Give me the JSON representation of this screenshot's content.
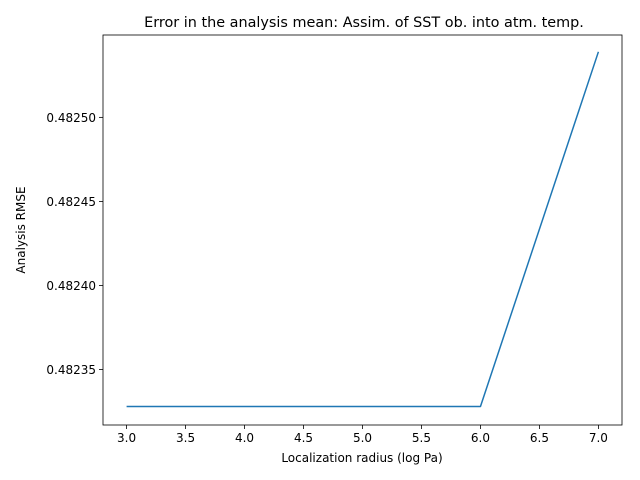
{
  "chart_data": {
    "type": "line",
    "title": "Error in the analysis mean: Assim. of SST ob. into atm. temp.",
    "xlabel": "Localization radius (log Pa)",
    "ylabel": "Analysis RMSE",
    "x": [
      3.0,
      4.0,
      5.0,
      6.0,
      7.0
    ],
    "series": [
      {
        "values": [
          0.482328,
          0.482328,
          0.482328,
          0.482328,
          0.482539
        ]
      }
    ],
    "xlim": [
      2.8,
      7.2
    ],
    "ylim": [
      0.482317,
      0.482549
    ],
    "xticks": [
      "3.0",
      "3.5",
      "4.0",
      "4.5",
      "5.0",
      "5.5",
      "6.0",
      "6.5",
      "7.0"
    ],
    "yticks": [
      "0.48235",
      "0.48240",
      "0.48245",
      "0.48250"
    ],
    "grid": false,
    "line_color": "#1f77b4"
  }
}
